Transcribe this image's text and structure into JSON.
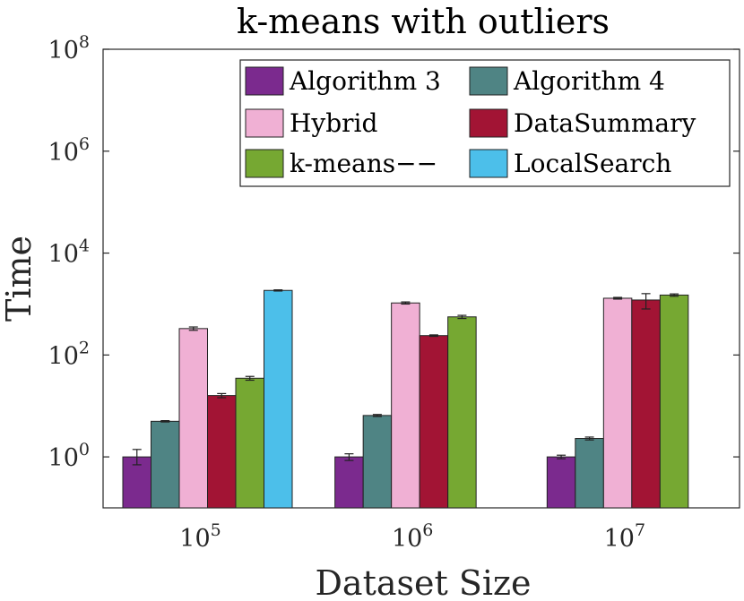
{
  "chart_data": {
    "type": "bar",
    "title": "k-means with outliers",
    "xlabel": "Dataset Size",
    "ylabel": "Time",
    "yscale": "log",
    "ylim": [
      0.1,
      100000000
    ],
    "yticks": [
      {
        "value": 1,
        "base": "10",
        "exp": "0"
      },
      {
        "value": 100,
        "base": "10",
        "exp": "2"
      },
      {
        "value": 10000,
        "base": "10",
        "exp": "4"
      },
      {
        "value": 1000000,
        "base": "10",
        "exp": "6"
      },
      {
        "value": 100000000,
        "base": "10",
        "exp": "8"
      }
    ],
    "categories": [
      {
        "base": "10",
        "exp": "5"
      },
      {
        "base": "10",
        "exp": "6"
      },
      {
        "base": "10",
        "exp": "7"
      }
    ],
    "legend_position": "top-right",
    "legend_columns": 2,
    "series": [
      {
        "name": "Algorithm 3",
        "color": "#7b2a8e",
        "values": [
          1.0,
          1.0,
          1.0
        ],
        "err_low": [
          0.7,
          0.85,
          0.92
        ],
        "err_high": [
          1.4,
          1.15,
          1.08
        ]
      },
      {
        "name": "Algorithm 4",
        "color": "#4f8484",
        "values": [
          5.0,
          6.5,
          2.3
        ],
        "err_low": [
          4.85,
          6.2,
          2.15
        ],
        "err_high": [
          5.15,
          6.8,
          2.45
        ]
      },
      {
        "name": "Hybrid",
        "color": "#f0b0d4",
        "values": [
          330,
          1050,
          1300
        ],
        "err_low": [
          305,
          1000,
          1250
        ],
        "err_high": [
          355,
          1100,
          1350
        ]
      },
      {
        "name": "DataSummary",
        "color": "#a21434",
        "values": [
          16,
          240,
          1200
        ],
        "err_low": [
          14.5,
          232,
          800
        ],
        "err_high": [
          17.5,
          248,
          1600
        ]
      },
      {
        "name": "k-means−−",
        "color": "#76a832",
        "values": [
          35,
          560,
          1500
        ],
        "err_low": [
          32,
          520,
          1420
        ],
        "err_high": [
          38,
          600,
          1580
        ]
      },
      {
        "name": "LocalSearch",
        "color": "#4cbfea",
        "values": [
          1850,
          null,
          null
        ],
        "err_low": [
          1800,
          null,
          null
        ],
        "err_high": [
          1900,
          null,
          null
        ]
      }
    ]
  }
}
